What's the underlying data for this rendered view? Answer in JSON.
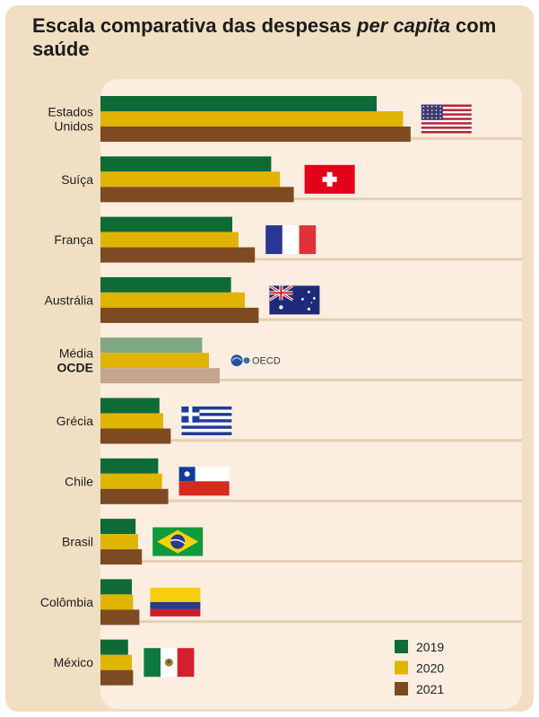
{
  "chart_data": {
    "type": "bar",
    "orientation": "horizontal",
    "title_parts": [
      {
        "text": "Escala comparativa das despesas ",
        "italic": false
      },
      {
        "text": "per capita",
        "italic": true
      },
      {
        "text": " com saúde",
        "italic": false
      }
    ],
    "categories": [
      {
        "label_lines": [
          "Estados",
          "Unidos"
        ],
        "bold_lines": [
          false,
          false
        ],
        "flag": "usa-flag-icon"
      },
      {
        "label_lines": [
          "Suíça"
        ],
        "bold_lines": [
          false
        ],
        "flag": "switzerland-flag-icon"
      },
      {
        "label_lines": [
          "França"
        ],
        "bold_lines": [
          false
        ],
        "flag": "france-flag-icon"
      },
      {
        "label_lines": [
          "Austrália"
        ],
        "bold_lines": [
          false
        ],
        "flag": "australia-flag-icon"
      },
      {
        "label_lines": [
          "Média",
          "OCDE"
        ],
        "bold_lines": [
          false,
          true
        ],
        "flag": "oecd-logo-icon",
        "logo_text": "OECD",
        "muted": true
      },
      {
        "label_lines": [
          "Grécia"
        ],
        "bold_lines": [
          false
        ],
        "flag": "greece-flag-icon"
      },
      {
        "label_lines": [
          "Chile"
        ],
        "bold_lines": [
          false
        ],
        "flag": "chile-flag-icon"
      },
      {
        "label_lines": [
          "Brasil"
        ],
        "bold_lines": [
          false
        ],
        "flag": "brazil-flag-icon"
      },
      {
        "label_lines": [
          "Colômbia"
        ],
        "bold_lines": [
          false
        ],
        "flag": "colombia-flag-icon"
      },
      {
        "label_lines": [
          "México"
        ],
        "bold_lines": [
          false
        ],
        "flag": "mexico-flag-icon"
      }
    ],
    "series": [
      {
        "name": "2019",
        "color": "#0f6b35",
        "muted_color": "#7fa882",
        "values": [
          11000,
          6800,
          5250,
          5200,
          4050,
          2350,
          2300,
          1400,
          1250,
          1100
        ]
      },
      {
        "name": "2020",
        "color": "#e0b400",
        "muted_color": "#e0b400",
        "values": [
          12050,
          7150,
          5500,
          5750,
          4320,
          2500,
          2450,
          1500,
          1300,
          1250
        ]
      },
      {
        "name": "2021",
        "color": "#7e4a22",
        "muted_color": "#c4a48c",
        "values": [
          12350,
          7700,
          6150,
          6300,
          4750,
          2800,
          2700,
          1650,
          1550,
          1300
        ]
      }
    ],
    "xlim": [
      0,
      16000
    ],
    "legend_position": "bottom-right",
    "grid": false
  }
}
